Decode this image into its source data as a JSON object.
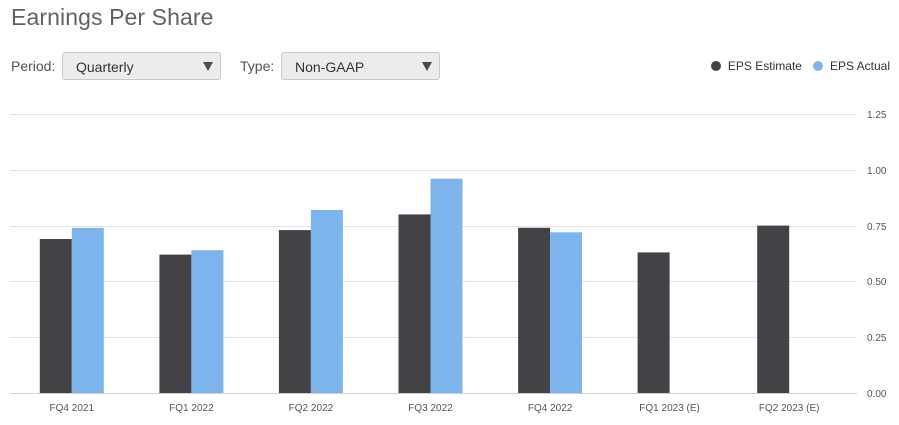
{
  "title": "Earnings Per Share",
  "controls": {
    "period_label": "Period:",
    "period_value": "Quarterly",
    "type_label": "Type:",
    "type_value": "Non-GAAP"
  },
  "legend": [
    {
      "label": "EPS Estimate",
      "color": "#434246"
    },
    {
      "label": "EPS Actual",
      "color": "#7cb4eb"
    }
  ],
  "chart_data": {
    "type": "bar",
    "categories": [
      "FQ4 2021",
      "FQ1 2022",
      "FQ2 2022",
      "FQ3 2022",
      "FQ4 2022",
      "FQ1 2023 (E)",
      "FQ2 2023 (E)"
    ],
    "series": [
      {
        "name": "EPS Estimate",
        "color": "#434246",
        "values": [
          0.69,
          0.62,
          0.73,
          0.8,
          0.74,
          0.63,
          0.75
        ]
      },
      {
        "name": "EPS Actual",
        "color": "#7cb4eb",
        "values": [
          0.74,
          0.64,
          0.82,
          0.96,
          0.72,
          null,
          null
        ]
      }
    ],
    "yticks": [
      "0.00",
      "0.25",
      "0.50",
      "0.75",
      "1.00",
      "1.25"
    ],
    "ylim": [
      0,
      1.25
    ],
    "y_axis_position": "right",
    "grid": true,
    "legend_position": "top-right"
  }
}
